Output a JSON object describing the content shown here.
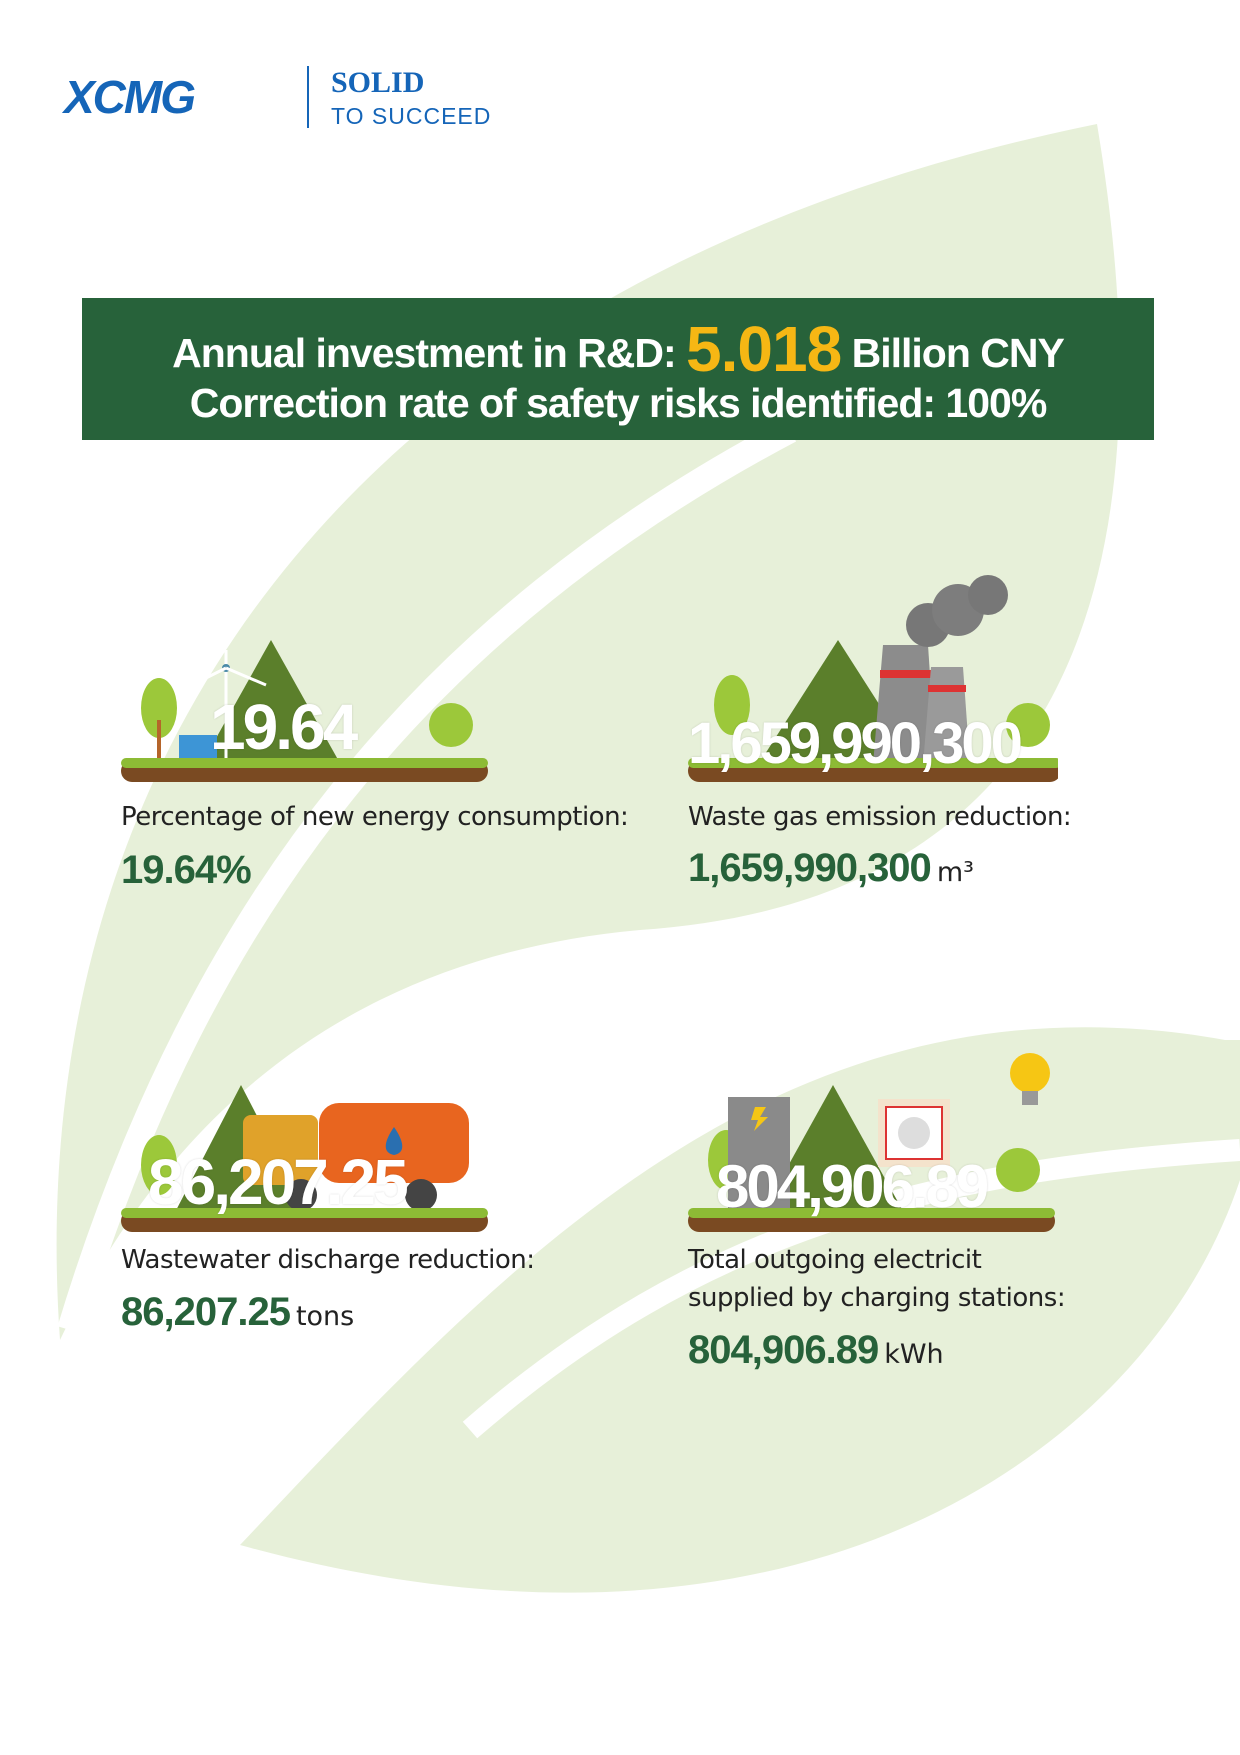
{
  "logo": {
    "brand": "XCMG",
    "slogan_line1": "SOLID",
    "slogan_line2": "TO SUCCEED"
  },
  "banner": {
    "line1_label": "Annual investment in R&D:",
    "line1_value": "5.018",
    "line1_unit": "Billion CNY",
    "line2": "Correction rate of safety risks identified: 100%"
  },
  "stats": [
    {
      "overlay": "19.64",
      "label": "Percentage of new energy consumption:",
      "value": "19.64%"
    },
    {
      "overlay": "1,659,990,300",
      "label": "Waste gas emission reduction:",
      "value": "1,659,990,300",
      "unit": "m³"
    },
    {
      "overlay": "86,207.25",
      "label": "Wastewater discharge reduction:",
      "value": "86,207.25",
      "unit": "tons"
    },
    {
      "overlay": "804,906.89",
      "label_line1": "Total outgoing electricit",
      "label_line2": "supplied by charging stations:",
      "value": "804,906.89",
      "unit": "kWh"
    }
  ]
}
